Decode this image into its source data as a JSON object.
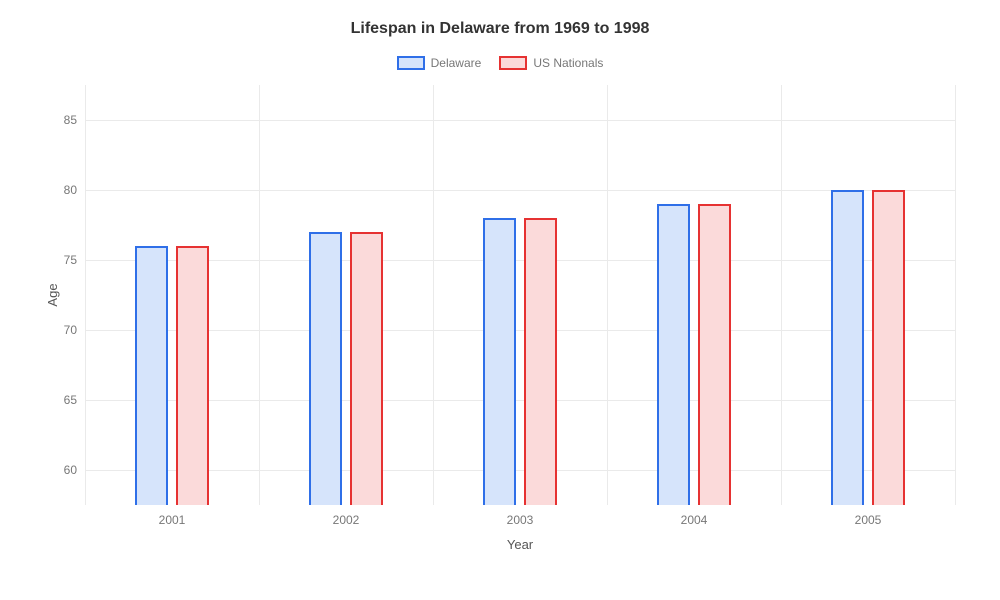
{
  "chart": {
    "type": "bar",
    "title": "Lifespan in Delaware from 1969 to 1998",
    "title_fontsize": 16,
    "title_color": "#333333",
    "background_color": "#ffffff",
    "grid_color": "#eaeaea",
    "tick_label_color": "#777777",
    "tick_label_fontsize": 12,
    "axis_title_color": "#555555",
    "axis_title_fontsize": 13,
    "x_axis": {
      "title": "Year",
      "categories": [
        "2001",
        "2002",
        "2003",
        "2004",
        "2005"
      ]
    },
    "y_axis": {
      "title": "Age",
      "min": 57.5,
      "max": 87.5,
      "ticks": [
        60,
        65,
        70,
        75,
        80,
        85
      ]
    },
    "series": [
      {
        "name": "Delaware",
        "border_color": "#2f6fe8",
        "fill_color": "#d6e4fb",
        "values": [
          76,
          77,
          78,
          79,
          80
        ]
      },
      {
        "name": "US Nationals",
        "border_color": "#e63232",
        "fill_color": "#fbdada",
        "values": [
          76,
          77,
          78,
          79,
          80
        ]
      }
    ],
    "bar_width_pct": 3.8,
    "bar_gap_pct": 1.0,
    "legend_swatch_border_width": 2
  }
}
